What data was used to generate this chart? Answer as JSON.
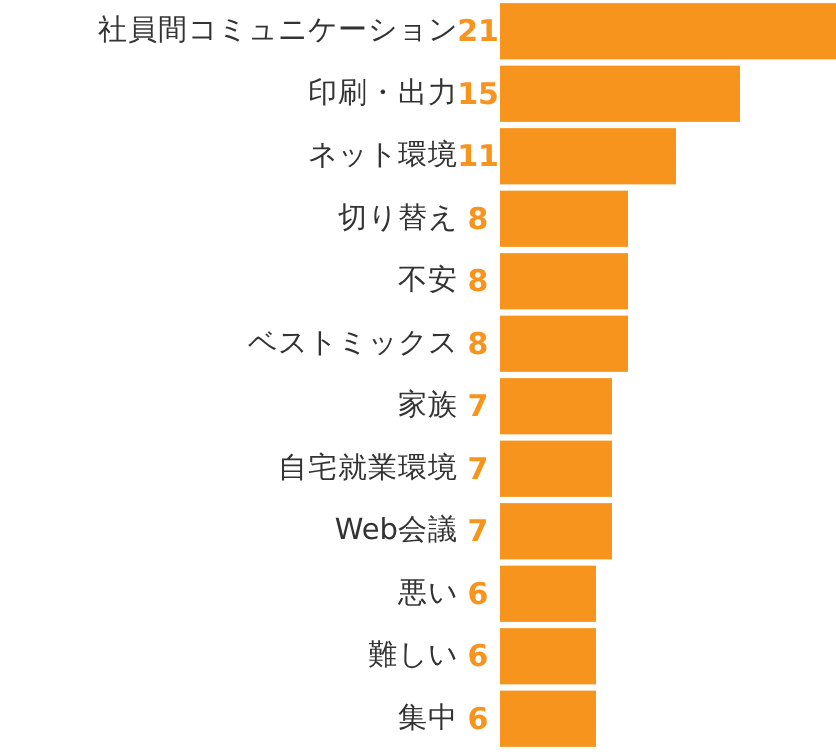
{
  "chart_data": {
    "type": "bar",
    "orientation": "horizontal",
    "categories": [
      "社員間コミュニケーション",
      "印刷・出力",
      "ネット環境",
      "切り替え",
      "不安",
      "ベストミックス",
      "家族",
      "自宅就業環境",
      "Web会議",
      "悪い",
      "難しい",
      "集中"
    ],
    "values": [
      21,
      15,
      11,
      8,
      8,
      8,
      7,
      7,
      7,
      6,
      6,
      6
    ],
    "color": "#f7941d",
    "data_labels": true
  }
}
